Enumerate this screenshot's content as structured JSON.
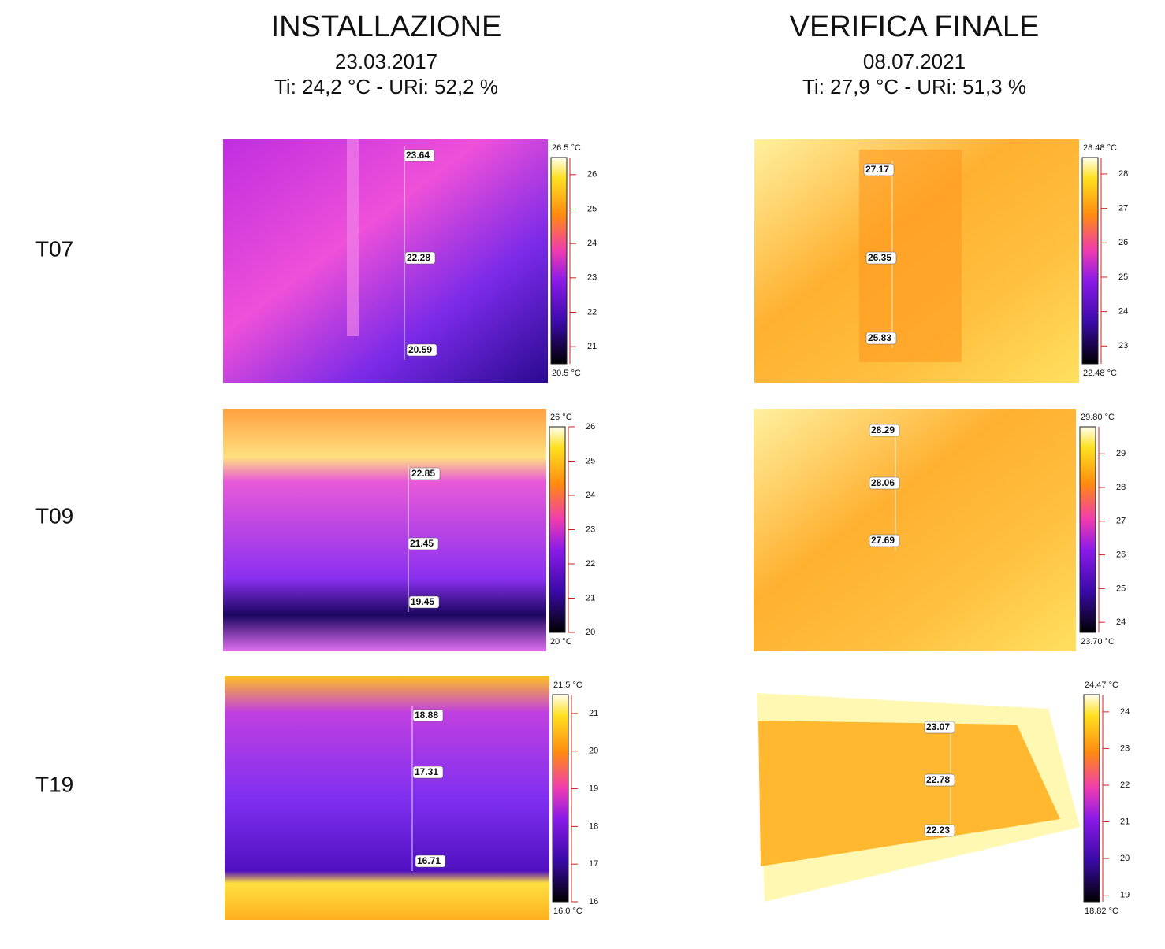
{
  "columns": [
    {
      "title": "INSTALLAZIONE",
      "date": "23.03.2017",
      "conditions": "Ti: 24,2 °C - URi: 52,2 %"
    },
    {
      "title": "VERIFICA FINALE",
      "date": "08.07.2021",
      "conditions": "Ti: 27,9 °C - URi: 51,3 %"
    }
  ],
  "rows": [
    {
      "label": "T07",
      "panels": [
        {
          "scale": {
            "max_label": "26.5 °C",
            "min_label": "20.5 °C",
            "range": [
              20.5,
              26.5
            ],
            "ticks": [
              21,
              22,
              23,
              24,
              25,
              26
            ]
          },
          "points": [
            23.64,
            22.28,
            20.59
          ]
        },
        {
          "scale": {
            "max_label": "28.48 °C",
            "min_label": "22.48 °C",
            "range": [
              22.48,
              28.48
            ],
            "ticks": [
              23,
              24,
              25,
              26,
              27,
              28
            ]
          },
          "points": [
            27.17,
            26.35,
            25.83
          ]
        }
      ]
    },
    {
      "label": "T09",
      "panels": [
        {
          "scale": {
            "max_label": "26 °C",
            "min_label": "20 °C",
            "range": [
              20,
              26
            ],
            "ticks": [
              20,
              21,
              22,
              23,
              24,
              25,
              26
            ]
          },
          "points": [
            22.85,
            21.45,
            19.45
          ]
        },
        {
          "scale": {
            "max_label": "29.80 °C",
            "min_label": "23.70 °C",
            "range": [
              23.7,
              29.8
            ],
            "ticks": [
              24,
              25,
              26,
              27,
              28,
              29
            ]
          },
          "points": [
            28.29,
            28.06,
            27.69
          ]
        }
      ]
    },
    {
      "label": "T19",
      "panels": [
        {
          "scale": {
            "max_label": "21.5 °C",
            "min_label": "16.0 °C",
            "range": [
              16.0,
              21.5
            ],
            "ticks": [
              16,
              17,
              18,
              19,
              20,
              21
            ]
          },
          "points": [
            18.88,
            17.31,
            16.71
          ]
        },
        {
          "scale": {
            "max_label": "24.47 °C",
            "min_label": "18.82 °C",
            "range": [
              18.82,
              24.47
            ],
            "ticks": [
              19,
              20,
              21,
              22,
              23,
              24
            ]
          },
          "points": [
            23.07,
            22.78,
            22.23
          ]
        }
      ]
    }
  ]
}
